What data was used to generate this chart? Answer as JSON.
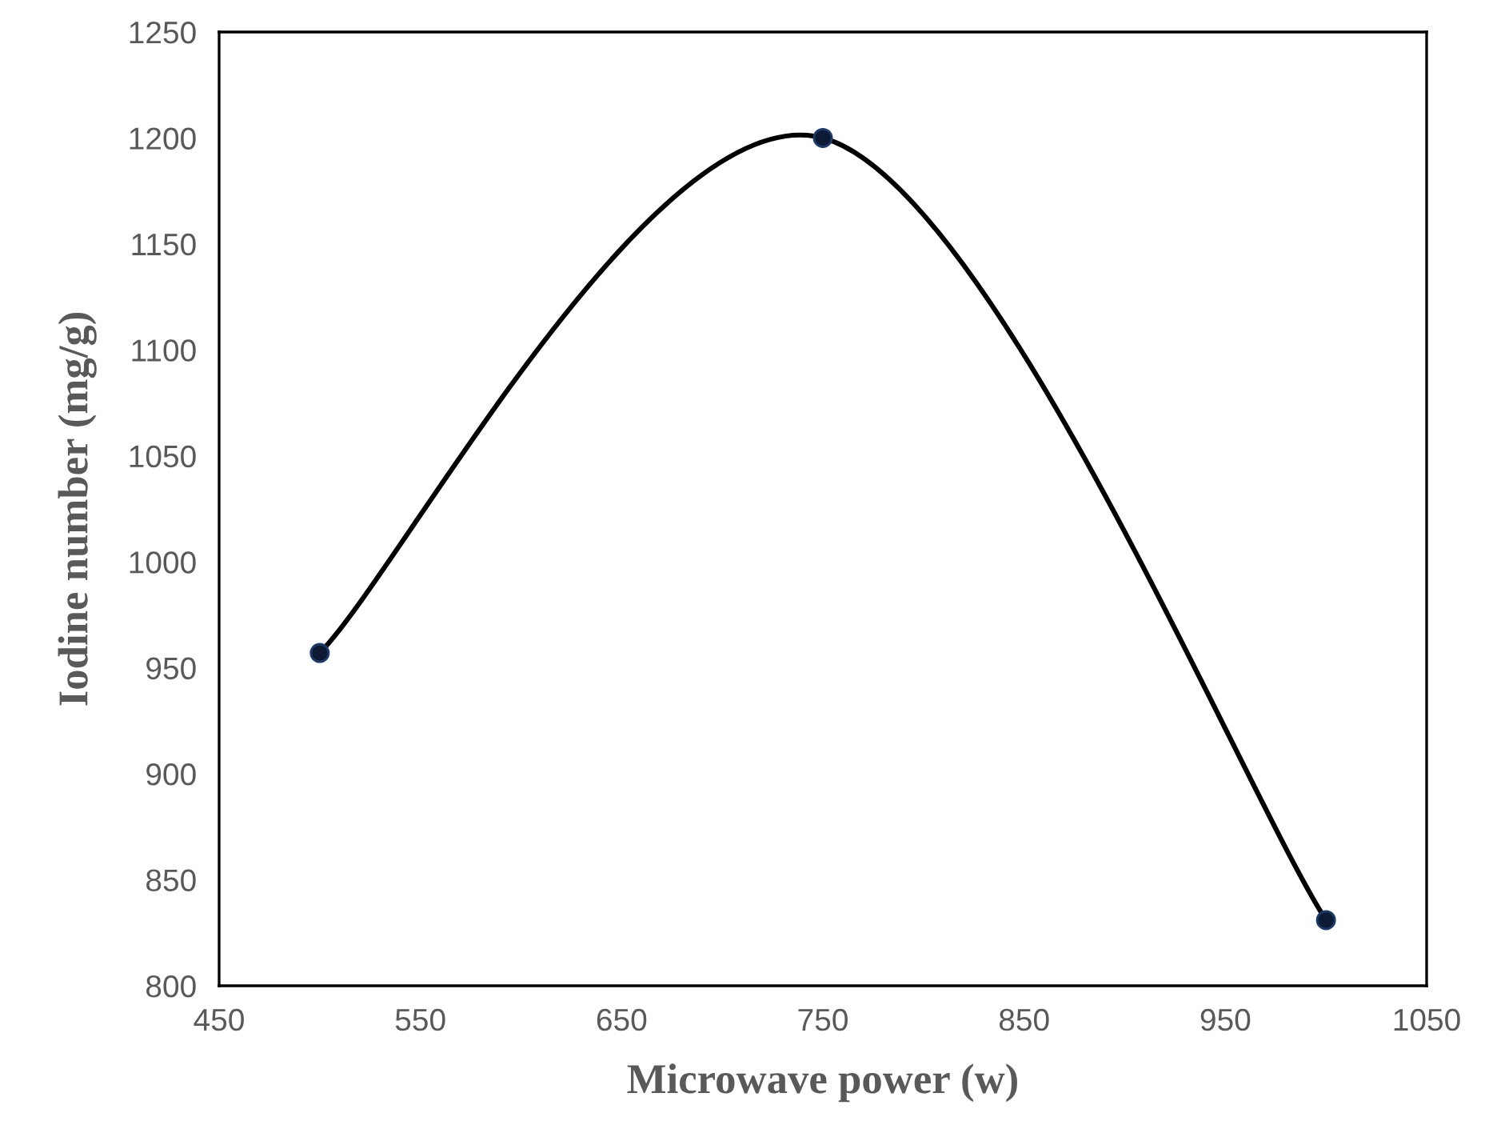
{
  "chart_data": {
    "type": "line",
    "xlabel": "Microwave power (w)",
    "ylabel": "Iodine number (mg/g)",
    "x": [
      500,
      750,
      1000
    ],
    "series": [
      {
        "color": "#0d1a33",
        "values": [
          957,
          1200,
          831
        ]
      }
    ],
    "xlim": [
      450,
      1050
    ],
    "xticks": [
      450,
      550,
      650,
      750,
      850,
      950,
      1050
    ],
    "ylim": [
      800,
      1250
    ],
    "yticks": [
      800,
      850,
      900,
      950,
      1000,
      1050,
      1100,
      1150,
      1200,
      1250
    ],
    "marker": "circle",
    "line_style": "solid",
    "grid": false,
    "legend": false
  }
}
